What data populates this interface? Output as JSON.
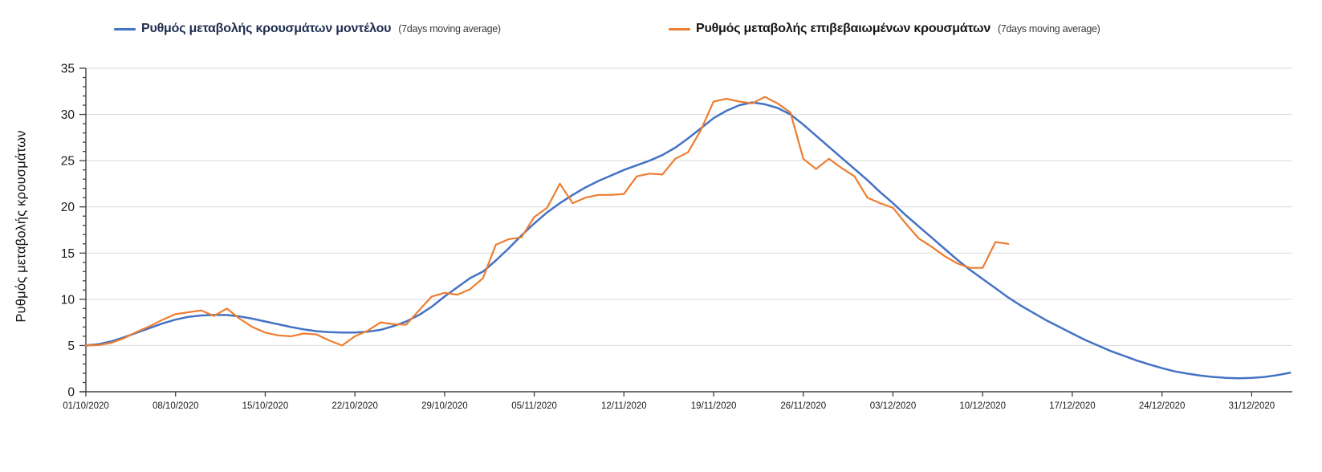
{
  "page": {
    "background": "#ffffff"
  },
  "legend": {
    "entries": [
      {
        "label": "Ρυθμός μεταβολής κρουσμάτων μοντέλου",
        "suffix": "(7days moving average)",
        "color": "#4472C4",
        "text_color": "#1f2d4f"
      },
      {
        "label": "Ρυθμός μεταβολής επιβεβαιωμένων κρουσμάτων",
        "suffix": "(7days moving average)",
        "color": "#ED7D31",
        "text_color": "#161616"
      }
    ]
  },
  "chart_data": {
    "type": "line",
    "title": "",
    "xlabel": "",
    "ylabel": "Ρυθμός μεταβολής κρουσμάτων",
    "ylim": [
      0,
      35
    ],
    "ytick_step": 5,
    "y_minor_tick_step": 1,
    "y_tick_labels": [
      "0",
      "5",
      "10",
      "15",
      "20",
      "25",
      "30",
      "35"
    ],
    "grid": "horizontal",
    "gridline_color": "#d9d9d9",
    "axis_color": "#404040",
    "x_start_date": "01/10/2020",
    "x_days_per_tick": 7,
    "x_tick_labels": [
      "01/10/2020",
      "08/10/2020",
      "15/10/2020",
      "22/10/2020",
      "29/10/2020",
      "05/11/2020",
      "12/11/2020",
      "19/11/2020",
      "26/11/2020",
      "03/12/2020",
      "10/12/2020",
      "17/12/2020",
      "24/12/2020",
      "31/12/2020"
    ],
    "legend_position": "top",
    "series": [
      {
        "name": "Ρυθμός μεταβολής κρουσμάτων μοντέλου (7days moving average)",
        "color": "#4472C4",
        "start_day": 0,
        "values": [
          5.0,
          5.15,
          5.45,
          5.9,
          6.4,
          6.9,
          7.4,
          7.8,
          8.1,
          8.25,
          8.3,
          8.3,
          8.15,
          7.9,
          7.6,
          7.3,
          7.0,
          6.75,
          6.55,
          6.45,
          6.4,
          6.4,
          6.5,
          6.7,
          7.1,
          7.6,
          8.3,
          9.2,
          10.3,
          11.3,
          12.3,
          13.0,
          14.2,
          15.5,
          16.9,
          18.2,
          19.4,
          20.4,
          21.3,
          22.1,
          22.8,
          23.4,
          24.0,
          24.5,
          25.0,
          25.6,
          26.4,
          27.4,
          28.5,
          29.6,
          30.4,
          31.0,
          31.3,
          31.1,
          30.7,
          30.0,
          28.9,
          27.7,
          26.5,
          25.3,
          24.1,
          22.9,
          21.6,
          20.4,
          19.1,
          17.9,
          16.7,
          15.5,
          14.3,
          13.2,
          12.2,
          11.2,
          10.2,
          9.3,
          8.5,
          7.7,
          7.0,
          6.3,
          5.6,
          5.0,
          4.4,
          3.9,
          3.4,
          2.95,
          2.55,
          2.2,
          1.95,
          1.75,
          1.6,
          1.5,
          1.45,
          1.5,
          1.6,
          1.8,
          2.05
        ]
      },
      {
        "name": "Ρυθμός μεταβολής επιβεβαιωμένων κρουσμάτων (7days moving average)",
        "color": "#ED7D31",
        "start_day": 0,
        "values": [
          5.0,
          5.05,
          5.3,
          5.8,
          6.5,
          7.1,
          7.8,
          8.4,
          8.6,
          8.8,
          8.2,
          9.0,
          7.9,
          7.0,
          6.4,
          6.1,
          6.0,
          6.3,
          6.2,
          5.55,
          5.0,
          6.0,
          6.6,
          7.5,
          7.3,
          7.25,
          8.8,
          10.3,
          10.7,
          10.5,
          11.1,
          12.3,
          15.9,
          16.5,
          16.7,
          18.9,
          19.9,
          22.5,
          20.4,
          21.0,
          21.3,
          21.3,
          21.4,
          23.3,
          23.6,
          23.5,
          25.2,
          25.9,
          28.3,
          31.4,
          31.7,
          31.4,
          31.2,
          31.9,
          31.2,
          30.2,
          25.2,
          24.1,
          25.2,
          24.2,
          23.3,
          21.0,
          20.4,
          19.9,
          18.2,
          16.6,
          15.7,
          14.7,
          13.9,
          13.4,
          13.4,
          16.2,
          16.0
        ]
      }
    ]
  }
}
